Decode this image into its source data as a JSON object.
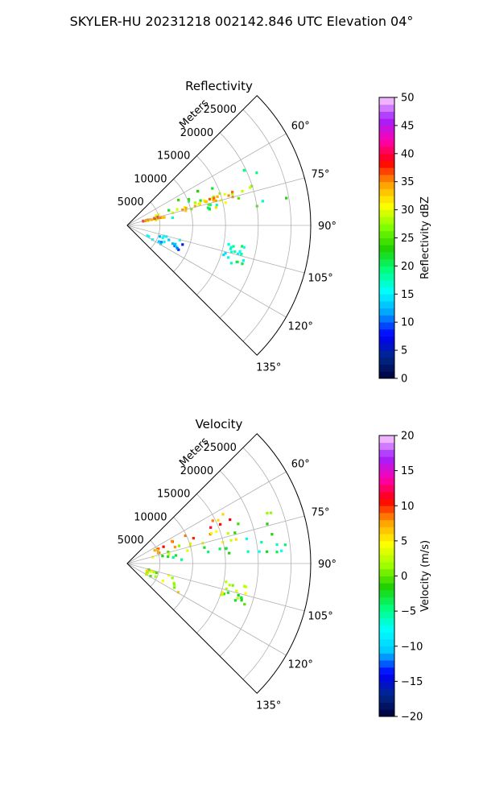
{
  "title": "SKYLER-HU  20231218  002142.846 UTC Elevation 04°",
  "chart_data": [
    {
      "type": "heatmap",
      "subtype": "polar-ppi-sector",
      "title": "Reflectivity",
      "radial_label": "Meters",
      "radial_ticks": [
        5000,
        10000,
        15000,
        20000,
        25000
      ],
      "range_max_m": 28000,
      "azimuth_range_deg": [
        45,
        135
      ],
      "azimuth_ticks": [
        "60°",
        "75°",
        "90°",
        "105°",
        "120°",
        "135°"
      ],
      "grid": true,
      "colorbar": {
        "label": "Reflectivity dBZ",
        "min": 0,
        "max": 50,
        "ticks": [
          "0",
          "5",
          "10",
          "15",
          "20",
          "25",
          "30",
          "35",
          "40",
          "45",
          "50"
        ],
        "stops": [
          "#00003c",
          "#00288c",
          "#0000ff",
          "#00a0ff",
          "#00ffff",
          "#00ff80",
          "#20d000",
          "#80ff00",
          "#ffff00",
          "#ffa000",
          "#ff0000",
          "#ff00b0",
          "#a020ff",
          "#ffd0ff"
        ]
      },
      "echo_regions": [
        {
          "az": [
            63,
            86
          ],
          "r": [
            4000,
            26000
          ],
          "value": 21
        },
        {
          "az": [
            70,
            79
          ],
          "r": [
            4000,
            20000
          ],
          "value": 29
        },
        {
          "az": [
            72,
            76
          ],
          "r": [
            8000,
            17000
          ],
          "value": 33
        },
        {
          "az": [
            75,
            78
          ],
          "r": [
            2500,
            6000
          ],
          "value": 34
        },
        {
          "az": [
            105,
            120
          ],
          "r": [
            3000,
            9000
          ],
          "value": 12
        },
        {
          "az": [
            100,
            110
          ],
          "r": [
            15000,
            19000
          ],
          "value": 18
        }
      ],
      "seed": 11
    },
    {
      "type": "heatmap",
      "subtype": "polar-ppi-sector",
      "title": "Velocity",
      "radial_label": "Meters",
      "radial_ticks": [
        5000,
        10000,
        15000,
        20000,
        25000
      ],
      "range_max_m": 28000,
      "azimuth_range_deg": [
        45,
        135
      ],
      "azimuth_ticks": [
        "60°",
        "75°",
        "90°",
        "105°",
        "120°",
        "135°"
      ],
      "grid": true,
      "colorbar": {
        "label": "Velocity (m/s)",
        "min": -20,
        "max": 20,
        "ticks": [
          "−20",
          "−15",
          "−10",
          "−5",
          "0",
          "5",
          "10",
          "15",
          "20"
        ],
        "stops": [
          "#00003c",
          "#00288c",
          "#0000ff",
          "#00c8ff",
          "#00ffff",
          "#00ff80",
          "#20d000",
          "#a0ff00",
          "#ffff00",
          "#ffa000",
          "#ff0000",
          "#ff00b0",
          "#a020ff",
          "#ffd0ff"
        ]
      },
      "echo_regions": [
        {
          "az": [
            62,
            72
          ],
          "r": [
            4000,
            20000
          ],
          "value": 8
        },
        {
          "az": [
            70,
            78
          ],
          "r": [
            4000,
            24000
          ],
          "value": 2
        },
        {
          "az": [
            78,
            86
          ],
          "r": [
            6000,
            26000
          ],
          "value": -4
        },
        {
          "az": [
            105,
            120
          ],
          "r": [
            3000,
            9000
          ],
          "value": 3
        },
        {
          "az": [
            100,
            110
          ],
          "r": [
            15000,
            19000
          ],
          "value": 1
        }
      ],
      "seed": 23
    }
  ]
}
